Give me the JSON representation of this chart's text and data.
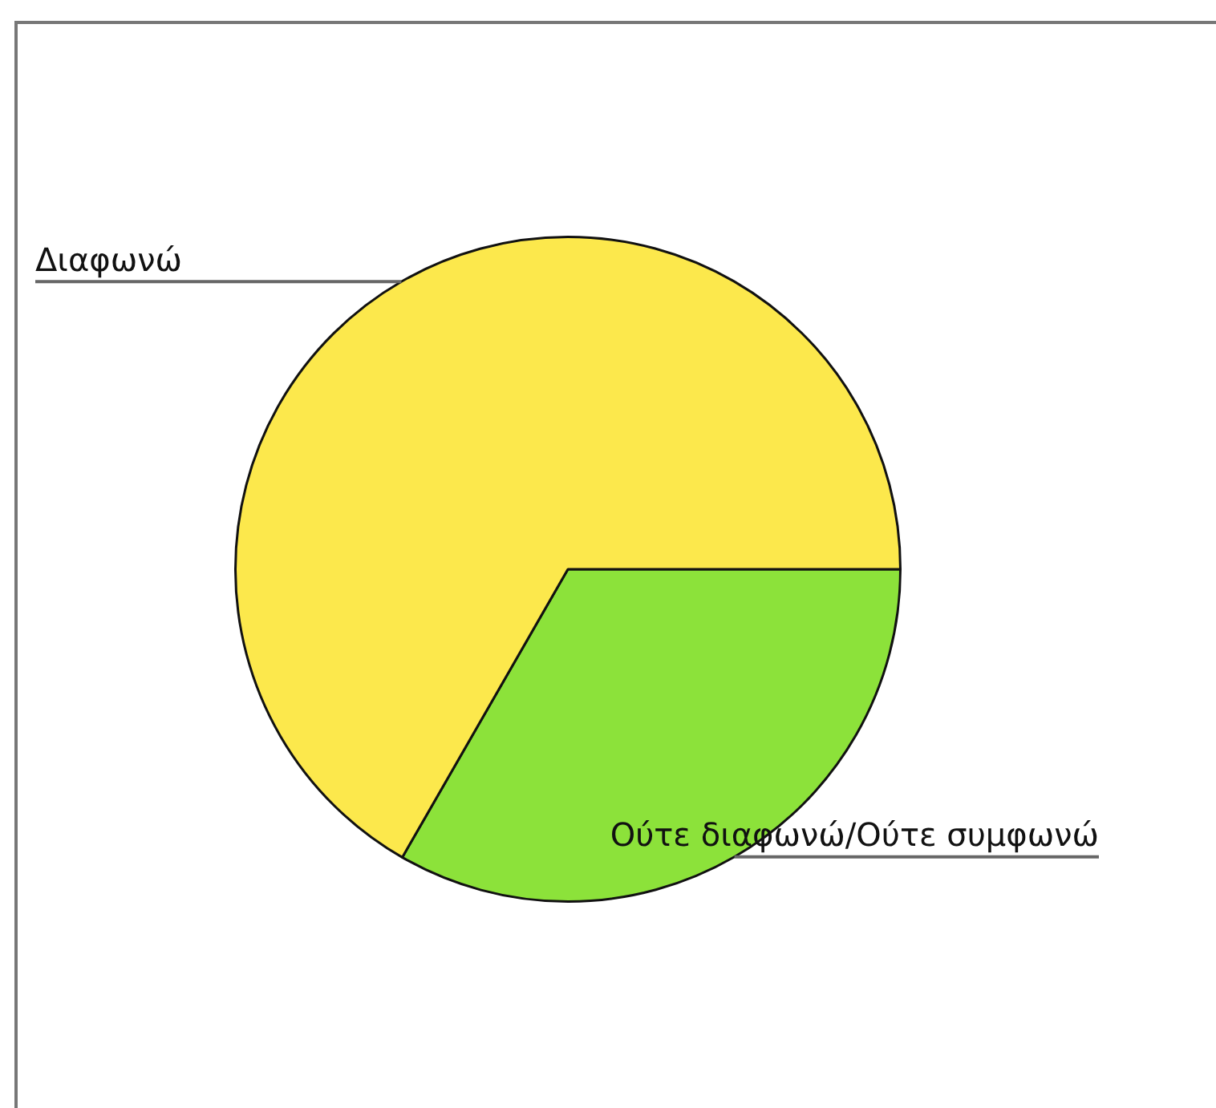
{
  "chart_data": {
    "type": "pie",
    "categories": [
      "Ούτε διαφωνώ/Ούτε συμφωνώ",
      "Διαφωνώ"
    ],
    "values": [
      33.3,
      66.7
    ],
    "colors": [
      "#8ce23a",
      "#fce84c"
    ]
  }
}
